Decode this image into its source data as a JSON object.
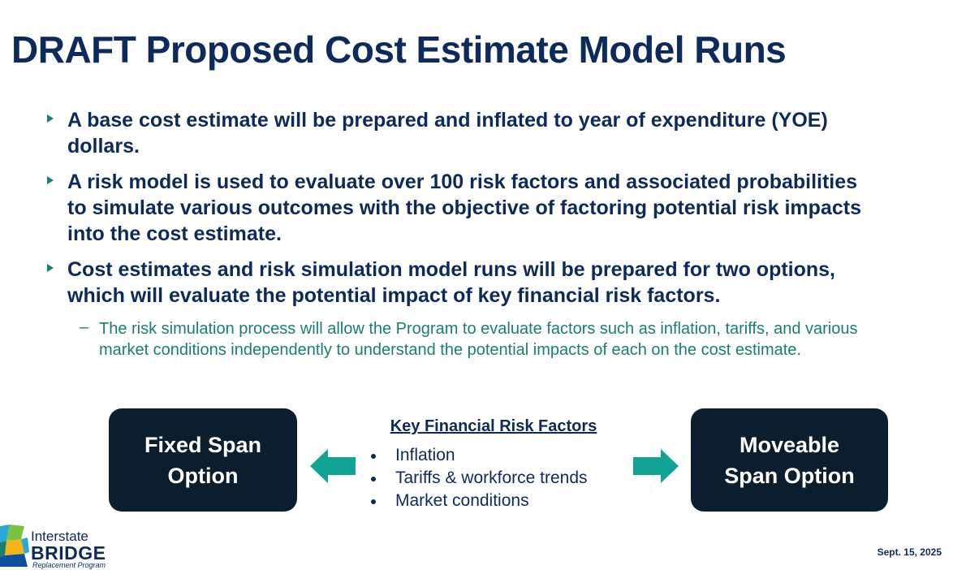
{
  "slide": {
    "title": "DRAFT Proposed Cost Estimate Model Runs",
    "bullets": [
      "A base cost estimate will be prepared and inflated to year of expenditure (YOE) dollars.",
      "A risk model is used to evaluate over 100 risk factors and associated probabilities to simulate various outcomes with the objective of factoring potential risk impacts into the cost estimate.",
      "Cost estimates and risk simulation model runs will be prepared for two options, which will evaluate the potential impact of key financial risk factors."
    ],
    "sub_bullet": "The risk simulation process will allow the Program to evaluate factors such as inflation, tariffs, and various market conditions independently to understand the potential impacts of each on the cost estimate."
  },
  "diagram": {
    "left_option": "Fixed Span Option",
    "right_option": "Moveable Span Option",
    "factors_title": "Key Financial Risk Factors",
    "factors": [
      "Inflation",
      "Tariffs & workforce trends",
      "Market conditions"
    ],
    "arrow_color": "#12a394",
    "box_color": "#0c1e2e"
  },
  "footer": {
    "logo": {
      "line1": "Interstate",
      "line2": "BRIDGE",
      "line3": "Replacement Program"
    },
    "date": "Sept. 15, 2025"
  }
}
